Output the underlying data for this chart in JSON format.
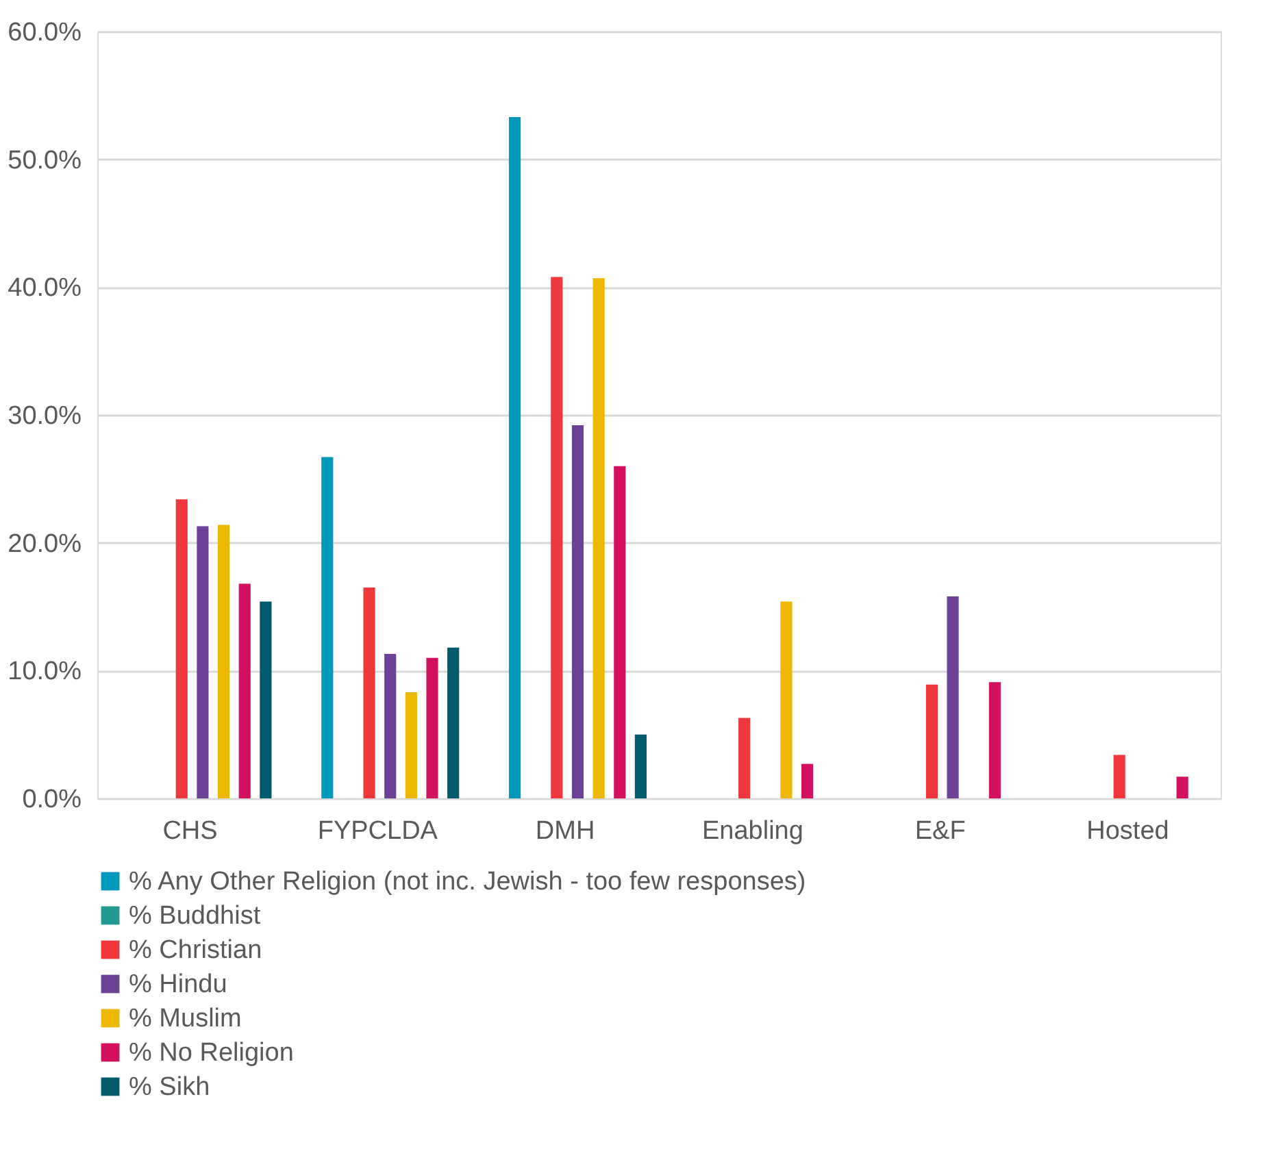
{
  "chart_data": {
    "type": "bar",
    "categories": [
      "CHS",
      "FYPCLDA",
      "DMH",
      "Enabling",
      "E&F",
      "Hosted"
    ],
    "series": [
      {
        "name": "% Any Other Religion (not inc. Jewish - too few responses)",
        "color": "#0099be",
        "values": [
          null,
          26.7,
          53.3,
          null,
          null,
          null
        ]
      },
      {
        "name": "% Buddhist",
        "color": "#239a94",
        "values": [
          null,
          null,
          null,
          null,
          null,
          null
        ]
      },
      {
        "name": "% Christian",
        "color": "#ef373c",
        "values": [
          23.4,
          16.5,
          40.8,
          6.3,
          8.9,
          3.4
        ]
      },
      {
        "name": "% Hindu",
        "color": "#6c4196",
        "values": [
          21.3,
          11.3,
          29.2,
          null,
          15.8,
          null
        ]
      },
      {
        "name": "% Muslim",
        "color": "#edb803",
        "values": [
          21.4,
          8.3,
          40.7,
          15.4,
          null,
          null
        ]
      },
      {
        "name": "% No Religion",
        "color": "#d30f60",
        "values": [
          16.8,
          11.0,
          26.0,
          2.7,
          9.1,
          1.7
        ]
      },
      {
        "name": "% Sikh",
        "color": "#015b6f",
        "values": [
          15.4,
          11.8,
          5.0,
          null,
          null,
          null
        ]
      }
    ],
    "ylim": [
      0,
      60
    ],
    "yticks": [
      {
        "value": 0,
        "label": "0.0%"
      },
      {
        "value": 10,
        "label": "10.0%"
      },
      {
        "value": 20,
        "label": "20.0%"
      },
      {
        "value": 30,
        "label": "30.0%"
      },
      {
        "value": 40,
        "label": "40.0%"
      },
      {
        "value": 50,
        "label": "50.0%"
      },
      {
        "value": 60,
        "label": "60.0%"
      }
    ],
    "grid": "y",
    "legend": "bottom"
  }
}
